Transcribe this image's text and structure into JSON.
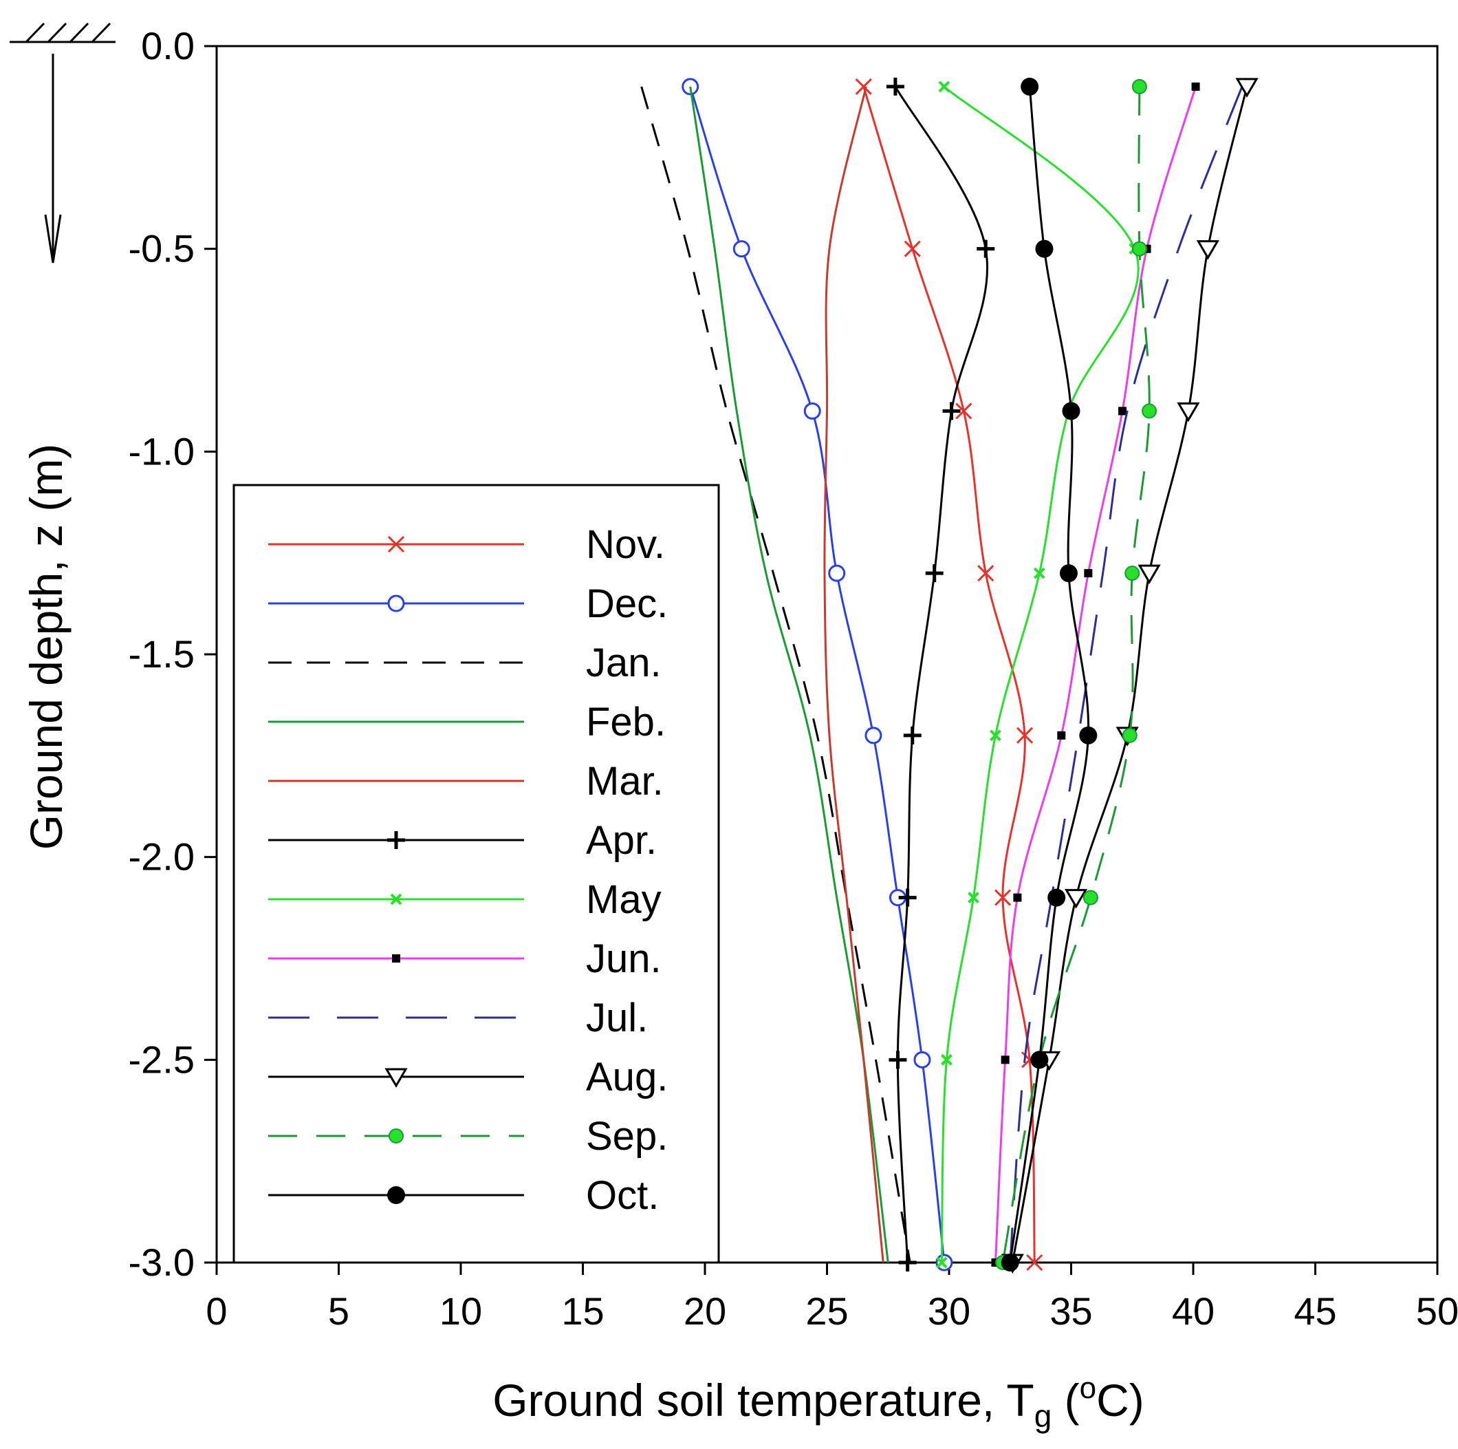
{
  "chart_data": {
    "type": "line",
    "title": "",
    "xlabel": "Ground soil temperature, T",
    "xlabel_subscript": "g",
    "xlabel_unit_open": " (",
    "xlabel_unit_sup": "o",
    "xlabel_unit_close": "C)",
    "ylabel": "Ground depth, z (m)",
    "xlim": [
      0,
      50
    ],
    "ylim": [
      -3.0,
      0.0
    ],
    "xticks": [
      "0",
      "5",
      "10",
      "15",
      "20",
      "25",
      "30",
      "35",
      "40",
      "45",
      "50"
    ],
    "yticks": [
      "0.0",
      "-0.5",
      "-1.0",
      "-1.5",
      "-2.0",
      "-2.5",
      "-3.0"
    ],
    "legend_position": "lower-left",
    "series": [
      {
        "name": "Nov.",
        "color": "#e8312b",
        "dash": "",
        "marker": "x",
        "z": [
          -0.1,
          -0.5,
          -0.9,
          -1.3,
          -1.7,
          -2.1,
          -2.5,
          -3.0
        ],
        "T": [
          26.5,
          28.5,
          30.6,
          31.5,
          33.1,
          32.2,
          33.3,
          33.5
        ]
      },
      {
        "name": "Dec.",
        "color": "#2a3fe8",
        "dash": "",
        "marker": "circle-open",
        "z": [
          -0.1,
          -0.5,
          -0.9,
          -1.3,
          -1.7,
          -2.1,
          -2.5,
          -3.0
        ],
        "T": [
          19.4,
          21.5,
          24.4,
          25.4,
          26.9,
          27.9,
          28.9,
          29.8
        ]
      },
      {
        "name": "Jan.",
        "color": "#000000",
        "dash": "long",
        "marker": "none",
        "z": [
          -0.1,
          -0.5,
          -0.9,
          -1.3,
          -1.7,
          -2.1,
          -2.5,
          -3.0
        ],
        "T": [
          17.4,
          19.3,
          20.9,
          22.8,
          24.6,
          25.8,
          27.0,
          28.4
        ]
      },
      {
        "name": "Feb.",
        "color": "#1a9a33",
        "dash": "",
        "marker": "none",
        "z": [
          -0.1,
          -0.5,
          -0.9,
          -1.3,
          -1.7,
          -2.1,
          -2.5,
          -3.0
        ],
        "T": [
          19.4,
          20.4,
          21.3,
          22.5,
          24.3,
          25.4,
          26.5,
          27.5
        ]
      },
      {
        "name": "Mar.",
        "color": "#c83a2c",
        "dash": "",
        "marker": "none",
        "z": [
          -0.1,
          -0.5,
          -0.9,
          -1.3,
          -1.7,
          -2.1,
          -2.5,
          -3.0
        ],
        "T": [
          26.6,
          25.1,
          25.0,
          24.9,
          25.1,
          25.8,
          26.5,
          27.3
        ]
      },
      {
        "name": "Apr.",
        "color": "#000000",
        "dash": "",
        "marker": "plus",
        "z": [
          -0.1,
          -0.5,
          -0.9,
          -1.3,
          -1.7,
          -2.1,
          -2.5,
          -3.0
        ],
        "T": [
          27.8,
          31.5,
          30.1,
          29.4,
          28.5,
          28.3,
          27.9,
          28.3
        ]
      },
      {
        "name": "May",
        "color": "#27e02b",
        "dash": "",
        "marker": "x-small",
        "z": [
          -0.1,
          -0.5,
          -0.9,
          -1.3,
          -1.7,
          -2.1,
          -2.5,
          -3.0
        ],
        "T": [
          29.8,
          37.6,
          34.9,
          33.7,
          31.9,
          31.0,
          29.9,
          29.7
        ]
      },
      {
        "name": "Jun.",
        "color": "#ee3bee",
        "dash": "",
        "marker": "square-small",
        "z": [
          -0.1,
          -0.5,
          -0.9,
          -1.3,
          -1.7,
          -2.1,
          -2.5,
          -3.0
        ],
        "T": [
          40.1,
          38.1,
          37.1,
          35.7,
          34.6,
          32.8,
          32.3,
          31.9
        ]
      },
      {
        "name": "Jul.",
        "color": "#2b2f95",
        "dash": "longgap",
        "marker": "none",
        "z": [
          -0.1,
          -0.5,
          -0.9,
          -1.3,
          -1.7,
          -2.1,
          -2.5,
          -3.0
        ],
        "T": [
          42.0,
          39.4,
          37.3,
          36.3,
          35.3,
          34.2,
          33.1,
          32.5
        ]
      },
      {
        "name": "Aug.",
        "color": "#000000",
        "dash": "",
        "marker": "triangle-down-open",
        "z": [
          -0.1,
          -0.5,
          -0.9,
          -1.3,
          -1.7,
          -2.1,
          -2.5,
          -3.0
        ],
        "T": [
          42.2,
          40.6,
          39.8,
          38.2,
          37.3,
          35.2,
          34.1,
          32.6
        ]
      },
      {
        "name": "Sep.",
        "color": "#1a9a33",
        "dash": "medium",
        "marker": "circle-filled-green",
        "z": [
          -0.1,
          -0.5,
          -0.9,
          -1.3,
          -1.7,
          -2.1,
          -2.5,
          -3.0
        ],
        "T": [
          37.8,
          37.8,
          38.2,
          37.5,
          37.4,
          35.8,
          33.7,
          32.2
        ]
      },
      {
        "name": "Oct.",
        "color": "#000000",
        "dash": "",
        "marker": "circle-filled",
        "z": [
          -0.1,
          -0.5,
          -0.9,
          -1.3,
          -1.7,
          -2.1,
          -2.5,
          -3.0
        ],
        "T": [
          33.3,
          33.9,
          35.0,
          34.9,
          35.7,
          34.4,
          33.7,
          32.5
        ]
      }
    ]
  }
}
